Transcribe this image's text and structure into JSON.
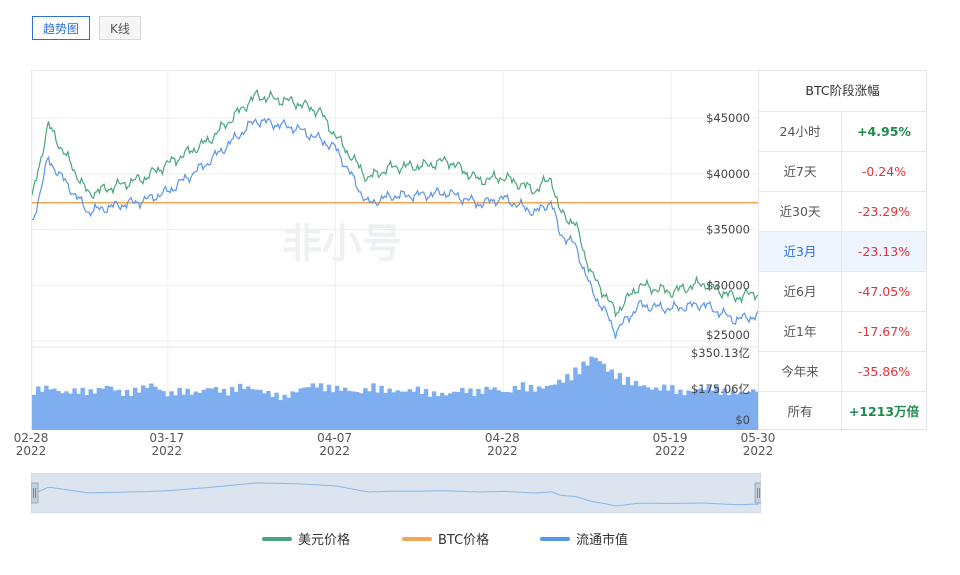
{
  "tabs": [
    {
      "label": "趋势图",
      "active": true
    },
    {
      "label": "K线",
      "active": false
    }
  ],
  "watermark": "非小号",
  "chart_data": {
    "type": "line",
    "x_dates": [
      "02-28",
      "03-17",
      "04-07",
      "04-28",
      "05-19",
      "05-30"
    ],
    "x_years": [
      "2022",
      "2022",
      "2022",
      "2022",
      "2022",
      "2022"
    ],
    "price_axis": {
      "ticks": [
        "$45000",
        "$40000",
        "$35000",
        "$30000",
        "$25000"
      ],
      "values": [
        45000,
        40000,
        35000,
        30000,
        25000
      ],
      "ylim": [
        25000,
        48000
      ]
    },
    "volume_axis": {
      "ticks": [
        "$350.13亿",
        "$175.06亿",
        "$0"
      ]
    },
    "series": [
      {
        "name": "美元价格",
        "color": "#4aa57c",
        "points": [
          [
            "02-28",
            37700
          ],
          [
            "03-02",
            44400
          ],
          [
            "03-07",
            38200
          ],
          [
            "03-11",
            39000
          ],
          [
            "03-14",
            39600
          ],
          [
            "03-17",
            40900
          ],
          [
            "03-22",
            42900
          ],
          [
            "03-28",
            47000
          ],
          [
            "04-02",
            46400
          ],
          [
            "04-05",
            45600
          ],
          [
            "04-07",
            43400
          ],
          [
            "04-11",
            39600
          ],
          [
            "04-14",
            40600
          ],
          [
            "04-18",
            40700
          ],
          [
            "04-21",
            41200
          ],
          [
            "04-25",
            39400
          ],
          [
            "04-28",
            39700
          ],
          [
            "05-02",
            38500
          ],
          [
            "05-04",
            39700
          ],
          [
            "05-05",
            36600
          ],
          [
            "05-07",
            35500
          ],
          [
            "05-09",
            31000
          ],
          [
            "05-11",
            28900
          ],
          [
            "05-12",
            27500
          ],
          [
            "05-15",
            30000
          ],
          [
            "05-19",
            29400
          ],
          [
            "05-23",
            30200
          ],
          [
            "05-27",
            28900
          ],
          [
            "05-30",
            29400
          ]
        ]
      },
      {
        "name": "BTC价格",
        "color": "#f3a552",
        "points": [
          [
            "02-28",
            37400
          ],
          [
            "05-30",
            37400
          ]
        ]
      },
      {
        "name": "流通市值",
        "color": "#5b95e8",
        "points": [
          [
            "02-28",
            35400
          ],
          [
            "03-02",
            41300
          ],
          [
            "03-07",
            36600
          ],
          [
            "03-11",
            37200
          ],
          [
            "03-14",
            37600
          ],
          [
            "03-17",
            38400
          ],
          [
            "03-22",
            41000
          ],
          [
            "03-28",
            44800
          ],
          [
            "04-02",
            44100
          ],
          [
            "04-05",
            43100
          ],
          [
            "04-07",
            42300
          ],
          [
            "04-11",
            37300
          ],
          [
            "04-14",
            38000
          ],
          [
            "04-18",
            38100
          ],
          [
            "04-21",
            38300
          ],
          [
            "04-25",
            37300
          ],
          [
            "04-28",
            37800
          ],
          [
            "05-02",
            36500
          ],
          [
            "05-04",
            37500
          ],
          [
            "05-05",
            34700
          ],
          [
            "05-07",
            33600
          ],
          [
            "05-09",
            29600
          ],
          [
            "05-11",
            27300
          ],
          [
            "05-12",
            25800
          ],
          [
            "05-15",
            28200
          ],
          [
            "05-19",
            27900
          ],
          [
            "05-23",
            28300
          ],
          [
            "05-27",
            26900
          ],
          [
            "05-30",
            27300
          ]
        ]
      }
    ],
    "volume_level": [
      0.55,
      0.58,
      0.5,
      0.55,
      0.52,
      0.6,
      0.5,
      0.55,
      0.62,
      0.48,
      0.55,
      0.5,
      0.58,
      0.52,
      0.6,
      0.55,
      0.5,
      0.45,
      0.55,
      0.62,
      0.58,
      0.56,
      0.5,
      0.6,
      0.54,
      0.52,
      0.56,
      0.5,
      0.48,
      0.55,
      0.52,
      0.58,
      0.5,
      0.62,
      0.56,
      0.6,
      0.7,
      0.85,
      1.0,
      0.8,
      0.7,
      0.62,
      0.55,
      0.6,
      0.5,
      0.55,
      0.58,
      0.52,
      0.5,
      0.55
    ],
    "grid": true,
    "legend_position": "bottom"
  },
  "legend": [
    {
      "label": "美元价格",
      "color": "#4aa57c"
    },
    {
      "label": "BTC价格",
      "color": "#f3a552"
    },
    {
      "label": "流通市值",
      "color": "#5b95e8"
    }
  ],
  "table": {
    "title": "BTC阶段涨幅",
    "rows": [
      {
        "label": "24小时",
        "value": "+4.95%",
        "dir": "up"
      },
      {
        "label": "近7天",
        "value": "-0.24%",
        "dir": "down"
      },
      {
        "label": "近30天",
        "value": "-23.29%",
        "dir": "down"
      },
      {
        "label": "近3月",
        "value": "-23.13%",
        "dir": "down",
        "active": true
      },
      {
        "label": "近6月",
        "value": "-47.05%",
        "dir": "down"
      },
      {
        "label": "近1年",
        "value": "-17.67%",
        "dir": "down"
      },
      {
        "label": "今年来",
        "value": "-35.86%",
        "dir": "down"
      },
      {
        "label": "所有",
        "value": "+1213万倍",
        "dir": "up"
      }
    ]
  }
}
